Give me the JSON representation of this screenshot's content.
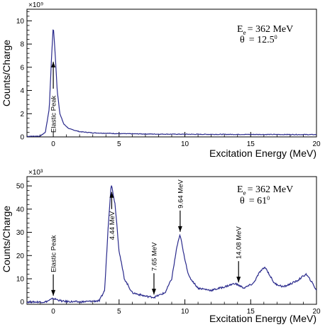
{
  "chart_data": [
    {
      "type": "line",
      "xlabel": "Excitation Energy (MeV)",
      "ylabel": "Counts/Charge",
      "multiplier": "×10⁹",
      "xlim": [
        -2,
        20
      ],
      "ylim": [
        0,
        11
      ],
      "xticks": [
        0,
        5,
        10,
        15,
        20
      ],
      "yticks": [
        0,
        2,
        4,
        6,
        8,
        10
      ],
      "beam_label": "E",
      "beam_subscript": "e",
      "beam_value": "= 362 MeV",
      "angle_label": "θ",
      "angle_value": "= 12.5",
      "angle_unit": "0",
      "series_color": "#2a2a8c",
      "x": [
        -2,
        -1,
        -0.6,
        -0.3,
        -0.15,
        0,
        0.15,
        0.3,
        0.5,
        0.8,
        1.2,
        2,
        3,
        5,
        8,
        12,
        16,
        20
      ],
      "y": [
        0.05,
        0.07,
        0.4,
        2.5,
        6.5,
        9.6,
        7.0,
        4.0,
        2.0,
        1.1,
        0.7,
        0.45,
        0.35,
        0.28,
        0.24,
        0.22,
        0.21,
        0.2
      ],
      "annotations": [
        {
          "text": "Elastic Peak",
          "x": 0,
          "arrow": "up",
          "rotated": true
        }
      ]
    },
    {
      "type": "line",
      "xlabel": "Excitation Energy (MeV)",
      "ylabel": "Counts/Charge",
      "multiplier": "×10³",
      "xlim": [
        -2,
        20
      ],
      "ylim": [
        -1,
        54
      ],
      "xticks": [
        0,
        5,
        10,
        15,
        20
      ],
      "yticks": [
        0,
        10,
        20,
        30,
        40,
        50
      ],
      "beam_label": "E",
      "beam_subscript": "e",
      "beam_value": "= 362 MeV",
      "angle_label": "θ",
      "angle_value": "= 61",
      "angle_unit": "0",
      "series_color": "#2a2a8c",
      "x": [
        -2,
        -0.6,
        -0.2,
        0,
        0.3,
        0.7,
        2,
        3.5,
        3.9,
        4.2,
        4.4,
        4.7,
        5.0,
        5.4,
        6,
        7,
        7.65,
        8.5,
        9.0,
        9.4,
        9.64,
        9.9,
        10.3,
        11,
        12,
        13,
        13.8,
        14.5,
        15.2,
        15.7,
        16.1,
        16.8,
        17.5,
        18.5,
        19.2,
        19.6,
        20
      ],
      "y": [
        0,
        0,
        1,
        1.5,
        1,
        0.3,
        0,
        0.5,
        5,
        35,
        51,
        42,
        22,
        10,
        4,
        2.5,
        2,
        4,
        10,
        24,
        29,
        21,
        11,
        6,
        5,
        6.5,
        8,
        6,
        8,
        13,
        15,
        8,
        6.5,
        9,
        12,
        9,
        5
      ],
      "annotations": [
        {
          "text": "Elastic Peak",
          "x": 0,
          "arrow": "down",
          "rotated": true
        },
        {
          "text": "4.44 MeV",
          "x": 4.44,
          "arrow": "up",
          "rotated": true
        },
        {
          "text": "7.65 MeV",
          "x": 7.65,
          "arrow": "down",
          "rotated": true
        },
        {
          "text": "9.64 MeV",
          "x": 9.64,
          "arrow": "down",
          "rotated": true
        },
        {
          "text": "14.08 MeV",
          "x": 14.08,
          "arrow": "down",
          "rotated": true
        }
      ]
    }
  ]
}
